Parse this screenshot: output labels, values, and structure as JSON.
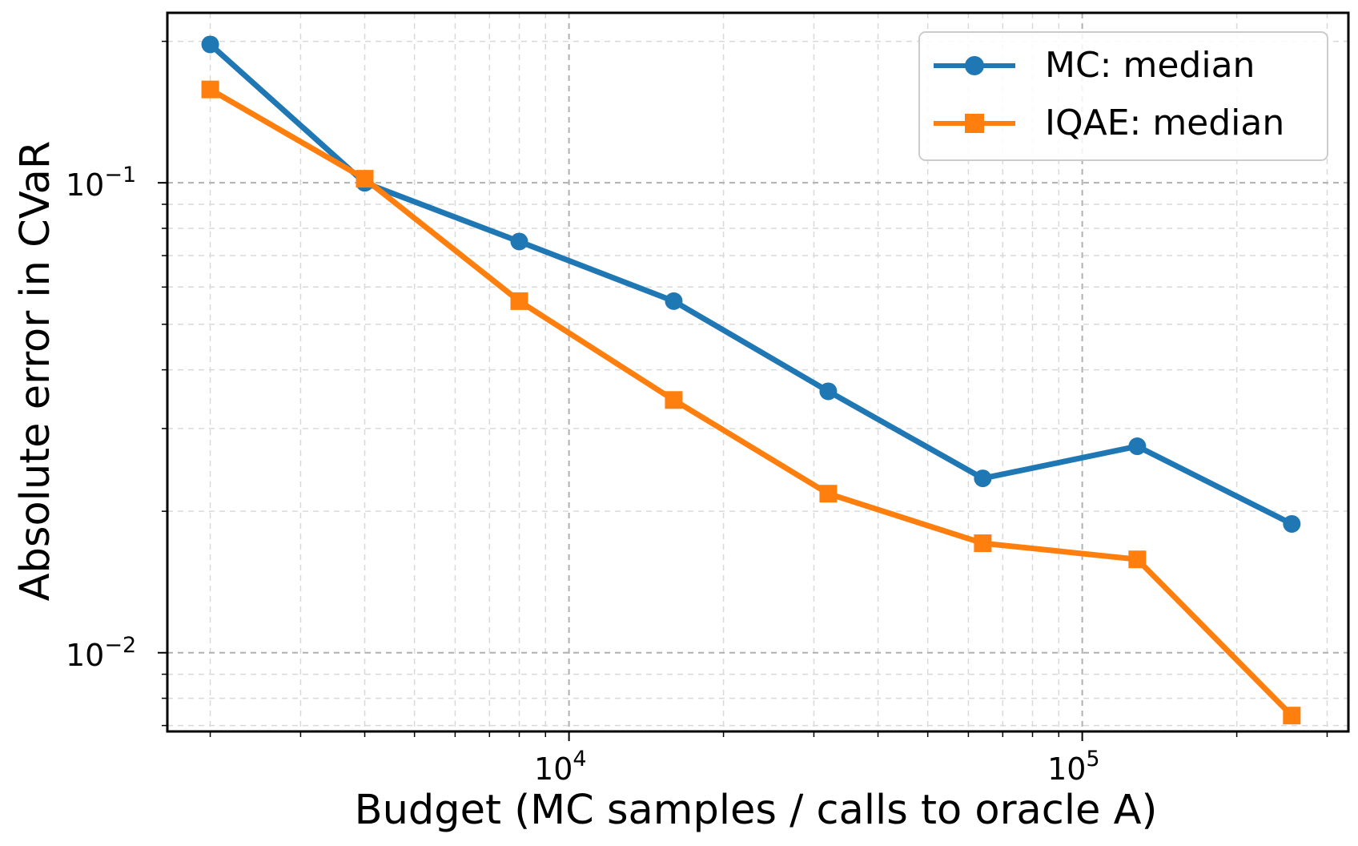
{
  "chart_data": {
    "type": "line",
    "title": "",
    "xlabel": "Budget (MC samples / calls to oracle A)",
    "ylabel": "Absolute error in CVaR",
    "xscale": "log",
    "yscale": "log",
    "xlim": [
      1650,
      330000
    ],
    "ylim": [
      0.0068,
      0.23
    ],
    "grid": true,
    "legend_position": "top-right",
    "x": [
      2000,
      4000,
      8000,
      16000,
      32000,
      64000,
      128000,
      256000
    ],
    "x_ticks": [
      {
        "value": 10000,
        "base": "10",
        "exp": "4"
      },
      {
        "value": 100000,
        "base": "10",
        "exp": "5"
      }
    ],
    "y_ticks": [
      {
        "value": 0.1,
        "base": "10",
        "exp": "−1"
      },
      {
        "value": 0.01,
        "base": "10",
        "exp": "−2"
      }
    ],
    "series": [
      {
        "name": "MC: median",
        "color": "#1f77b4",
        "marker": "circle",
        "values": [
          0.197,
          0.1,
          0.075,
          0.056,
          0.036,
          0.0235,
          0.0275,
          0.0188
        ]
      },
      {
        "name": "IQAE: median",
        "color": "#ff7f0e",
        "marker": "square",
        "values": [
          0.158,
          0.102,
          0.056,
          0.0345,
          0.0218,
          0.0171,
          0.0158,
          0.00735
        ]
      }
    ]
  }
}
